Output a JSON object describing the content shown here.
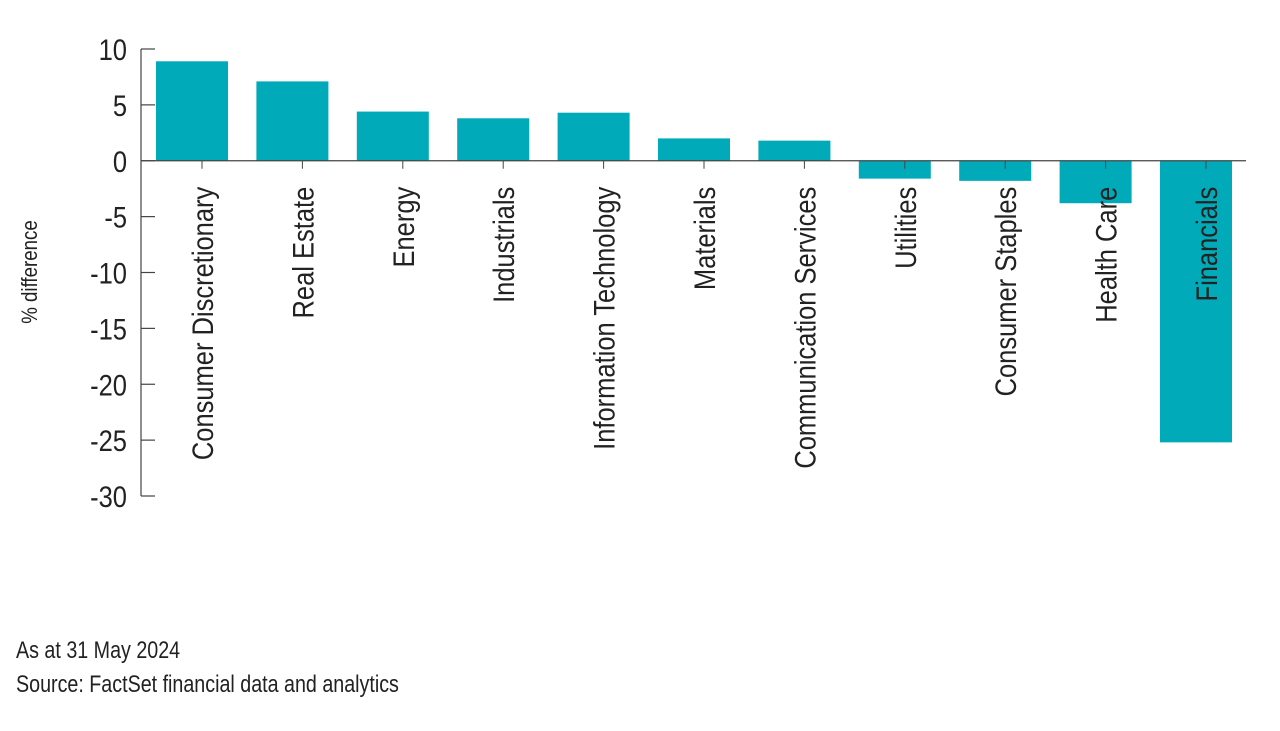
{
  "chart_data": {
    "type": "bar",
    "ylabel": "% difference",
    "xlabel": "",
    "ylim": [
      -30,
      10
    ],
    "yticks": [
      10,
      5,
      0,
      -5,
      -10,
      -15,
      -20,
      -25,
      -30
    ],
    "categories": [
      "Consumer Discretionary",
      "Real Estate",
      "Energy",
      "Industrials",
      "Information Technology",
      "Materials",
      "Communication Services",
      "Utilities",
      "Consumer Staples",
      "Health Care",
      "Financials"
    ],
    "values": [
      8.9,
      7.1,
      4.4,
      3.8,
      4.3,
      2.0,
      1.8,
      -1.6,
      -1.8,
      -3.8,
      -25.2
    ],
    "grid": false,
    "legend": "none",
    "bar_color": "#00aab8"
  },
  "notes": {
    "as_at": "As at 31 May 2024",
    "source": "Source: FactSet financial data and analytics"
  }
}
